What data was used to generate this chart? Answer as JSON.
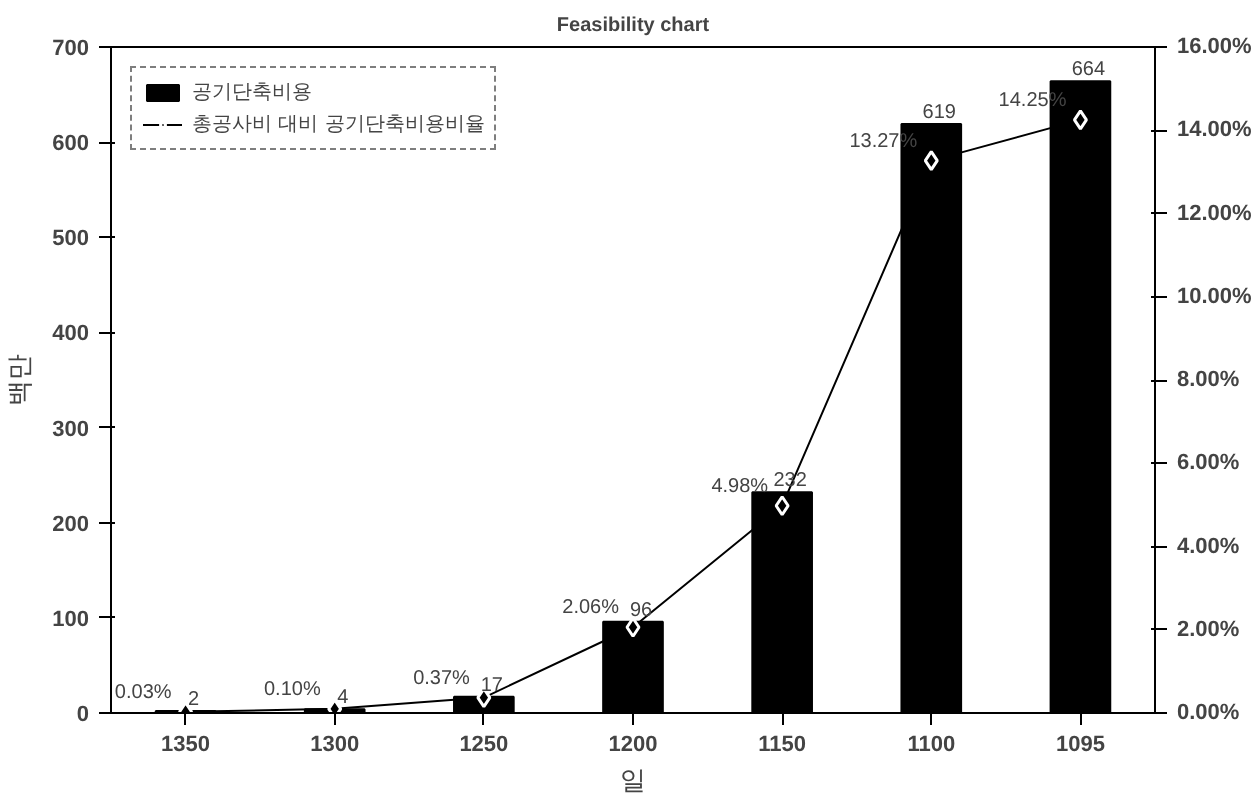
{
  "chart_data": {
    "type": "bar",
    "title": "Feasibility chart",
    "xlabel": "일",
    "ylabel": "백만",
    "categories": [
      "1350",
      "1300",
      "1250",
      "1200",
      "1150",
      "1100",
      "1095"
    ],
    "series": [
      {
        "name": "공기단축비용",
        "color": "#000000",
        "values": [
          2,
          4,
          17,
          96,
          232,
          619,
          664
        ]
      },
      {
        "name": "총공사비 대비 공기단축비용비율",
        "type": "line",
        "axis": "y2",
        "color": "#000000",
        "marker": "diamond",
        "values": [
          0.03,
          0.1,
          0.37,
          2.06,
          4.98,
          13.27,
          14.25
        ],
        "value_labels": [
          "0.03%",
          "0.10%",
          "0.37%",
          "2.06%",
          "4.98%",
          "13.27%",
          "14.25%"
        ]
      }
    ],
    "ylim": [
      0,
      700
    ],
    "yticks": [
      0,
      100,
      200,
      300,
      400,
      500,
      600,
      700
    ],
    "y2lim": [
      0,
      16
    ],
    "y2ticks": [
      {
        "value": 0,
        "label": "0.00%"
      },
      {
        "value": 2,
        "label": "2.00%"
      },
      {
        "value": 4,
        "label": "4.00%"
      },
      {
        "value": 6,
        "label": "6.00%"
      },
      {
        "value": 8,
        "label": "8.00%"
      },
      {
        "value": 10,
        "label": "10.00%"
      },
      {
        "value": 12,
        "label": "12.00%"
      },
      {
        "value": 14,
        "label": "14.00%"
      },
      {
        "value": 16,
        "label": "16.00%"
      }
    ],
    "data_labels": true,
    "grid": false,
    "legend": "top left"
  }
}
